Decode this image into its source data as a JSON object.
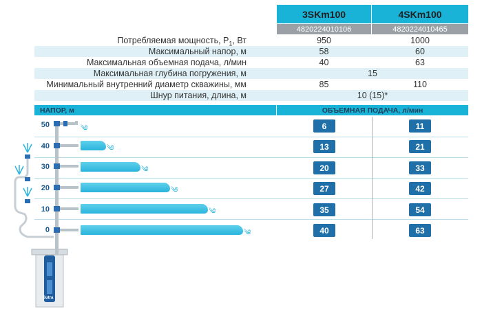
{
  "models": [
    {
      "name": "3SKm100",
      "sku": "4820224010106"
    },
    {
      "name": "4SKm100",
      "sku": "4820224010465"
    }
  ],
  "specs": [
    {
      "label": "Потребляемая мощность, P",
      "sub": "1",
      "suffix": ", Вт",
      "v1": "950",
      "v2": "1000"
    },
    {
      "label": "Максимальный напор, м",
      "v1": "58",
      "v2": "60"
    },
    {
      "label": "Максимальная объемная подача, л/мин",
      "v1": "40",
      "v2": "63"
    },
    {
      "label": "Максимальная глубина погружения, м",
      "span": "15"
    },
    {
      "label": "Минимальный внутренний диаметр скважины, мм",
      "v1": "85",
      "v2": "110"
    },
    {
      "label": "Шнур питания, длина, м",
      "span": "10 (15)*"
    }
  ],
  "head_section_label": "НАПОР, м",
  "flow_section_label": "ОБЪЕМНАЯ ПОДАЧА, л/мин",
  "levels": [
    {
      "head": "50",
      "q1": "6",
      "q2": "11"
    },
    {
      "head": "40",
      "q1": "13",
      "q2": "21"
    },
    {
      "head": "30",
      "q1": "20",
      "q2": "33"
    },
    {
      "head": "20",
      "q1": "27",
      "q2": "42"
    },
    {
      "head": "10",
      "q1": "35",
      "q2": "54"
    },
    {
      "head": "0",
      "q1": "40",
      "q2": "63"
    }
  ],
  "pump_brand": "Sutra",
  "colors": {
    "accent": "#19b3d8",
    "badge": "#1f6fa8",
    "row_shade": "#dff1f7",
    "sku_bar": "#9aa0a6"
  }
}
